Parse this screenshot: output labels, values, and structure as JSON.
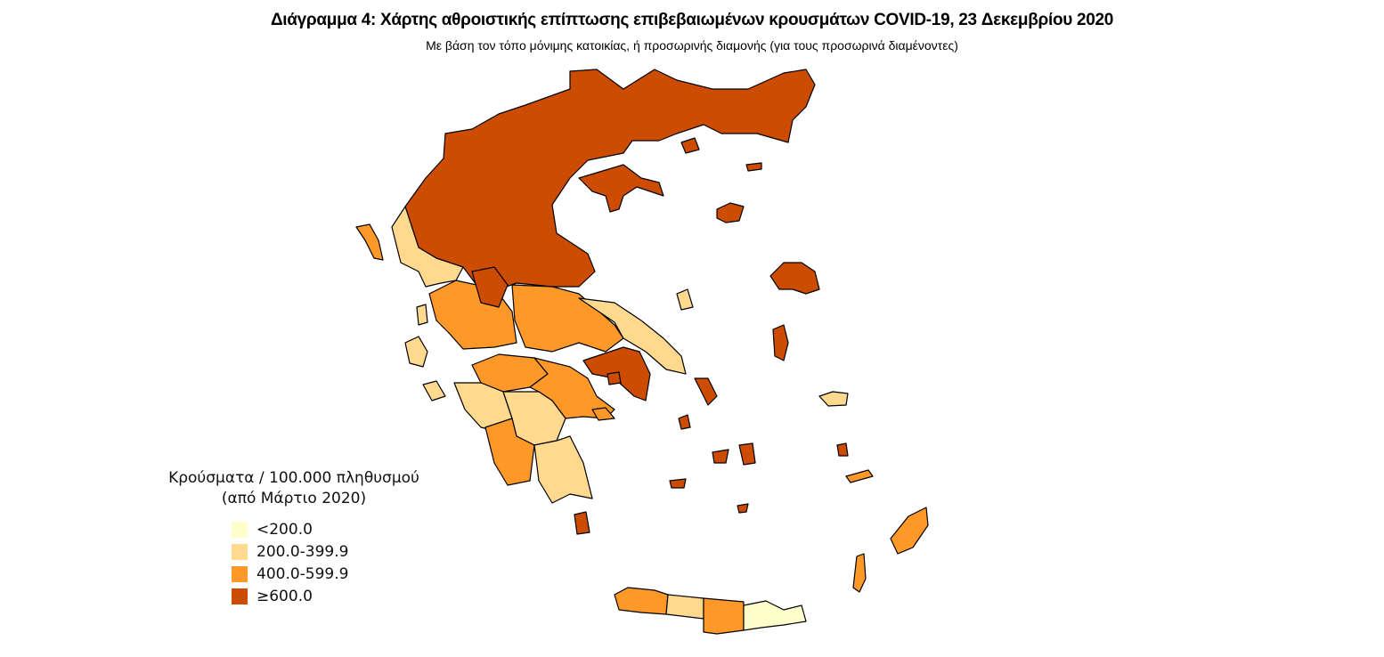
{
  "title": "Διάγραμμα 4: Χάρτης αθροιστικής επίπτωσης επιβεβαιωμένων κρουσμάτων COVID-19, 23 Δεκεμβρίου 2020",
  "subtitle": "Με βάση τον τόπο μόνιμης κατοικίας, ή προσωρινής διαμονής (για τους προσωρινά διαμένοντες)",
  "legend": {
    "title_line1": "Κρούσματα / 100.000 πληθυσμού",
    "title_line2": "(από Μάρτιο 2020)",
    "items": [
      {
        "label": "<200.0",
        "color": "#ffffcc"
      },
      {
        "label": "200.0-399.9",
        "color": "#fed98e"
      },
      {
        "label": "400.0-599.9",
        "color": "#fe9929"
      },
      {
        "label": "≥600.0",
        "color": "#cc4c02"
      }
    ]
  }
}
